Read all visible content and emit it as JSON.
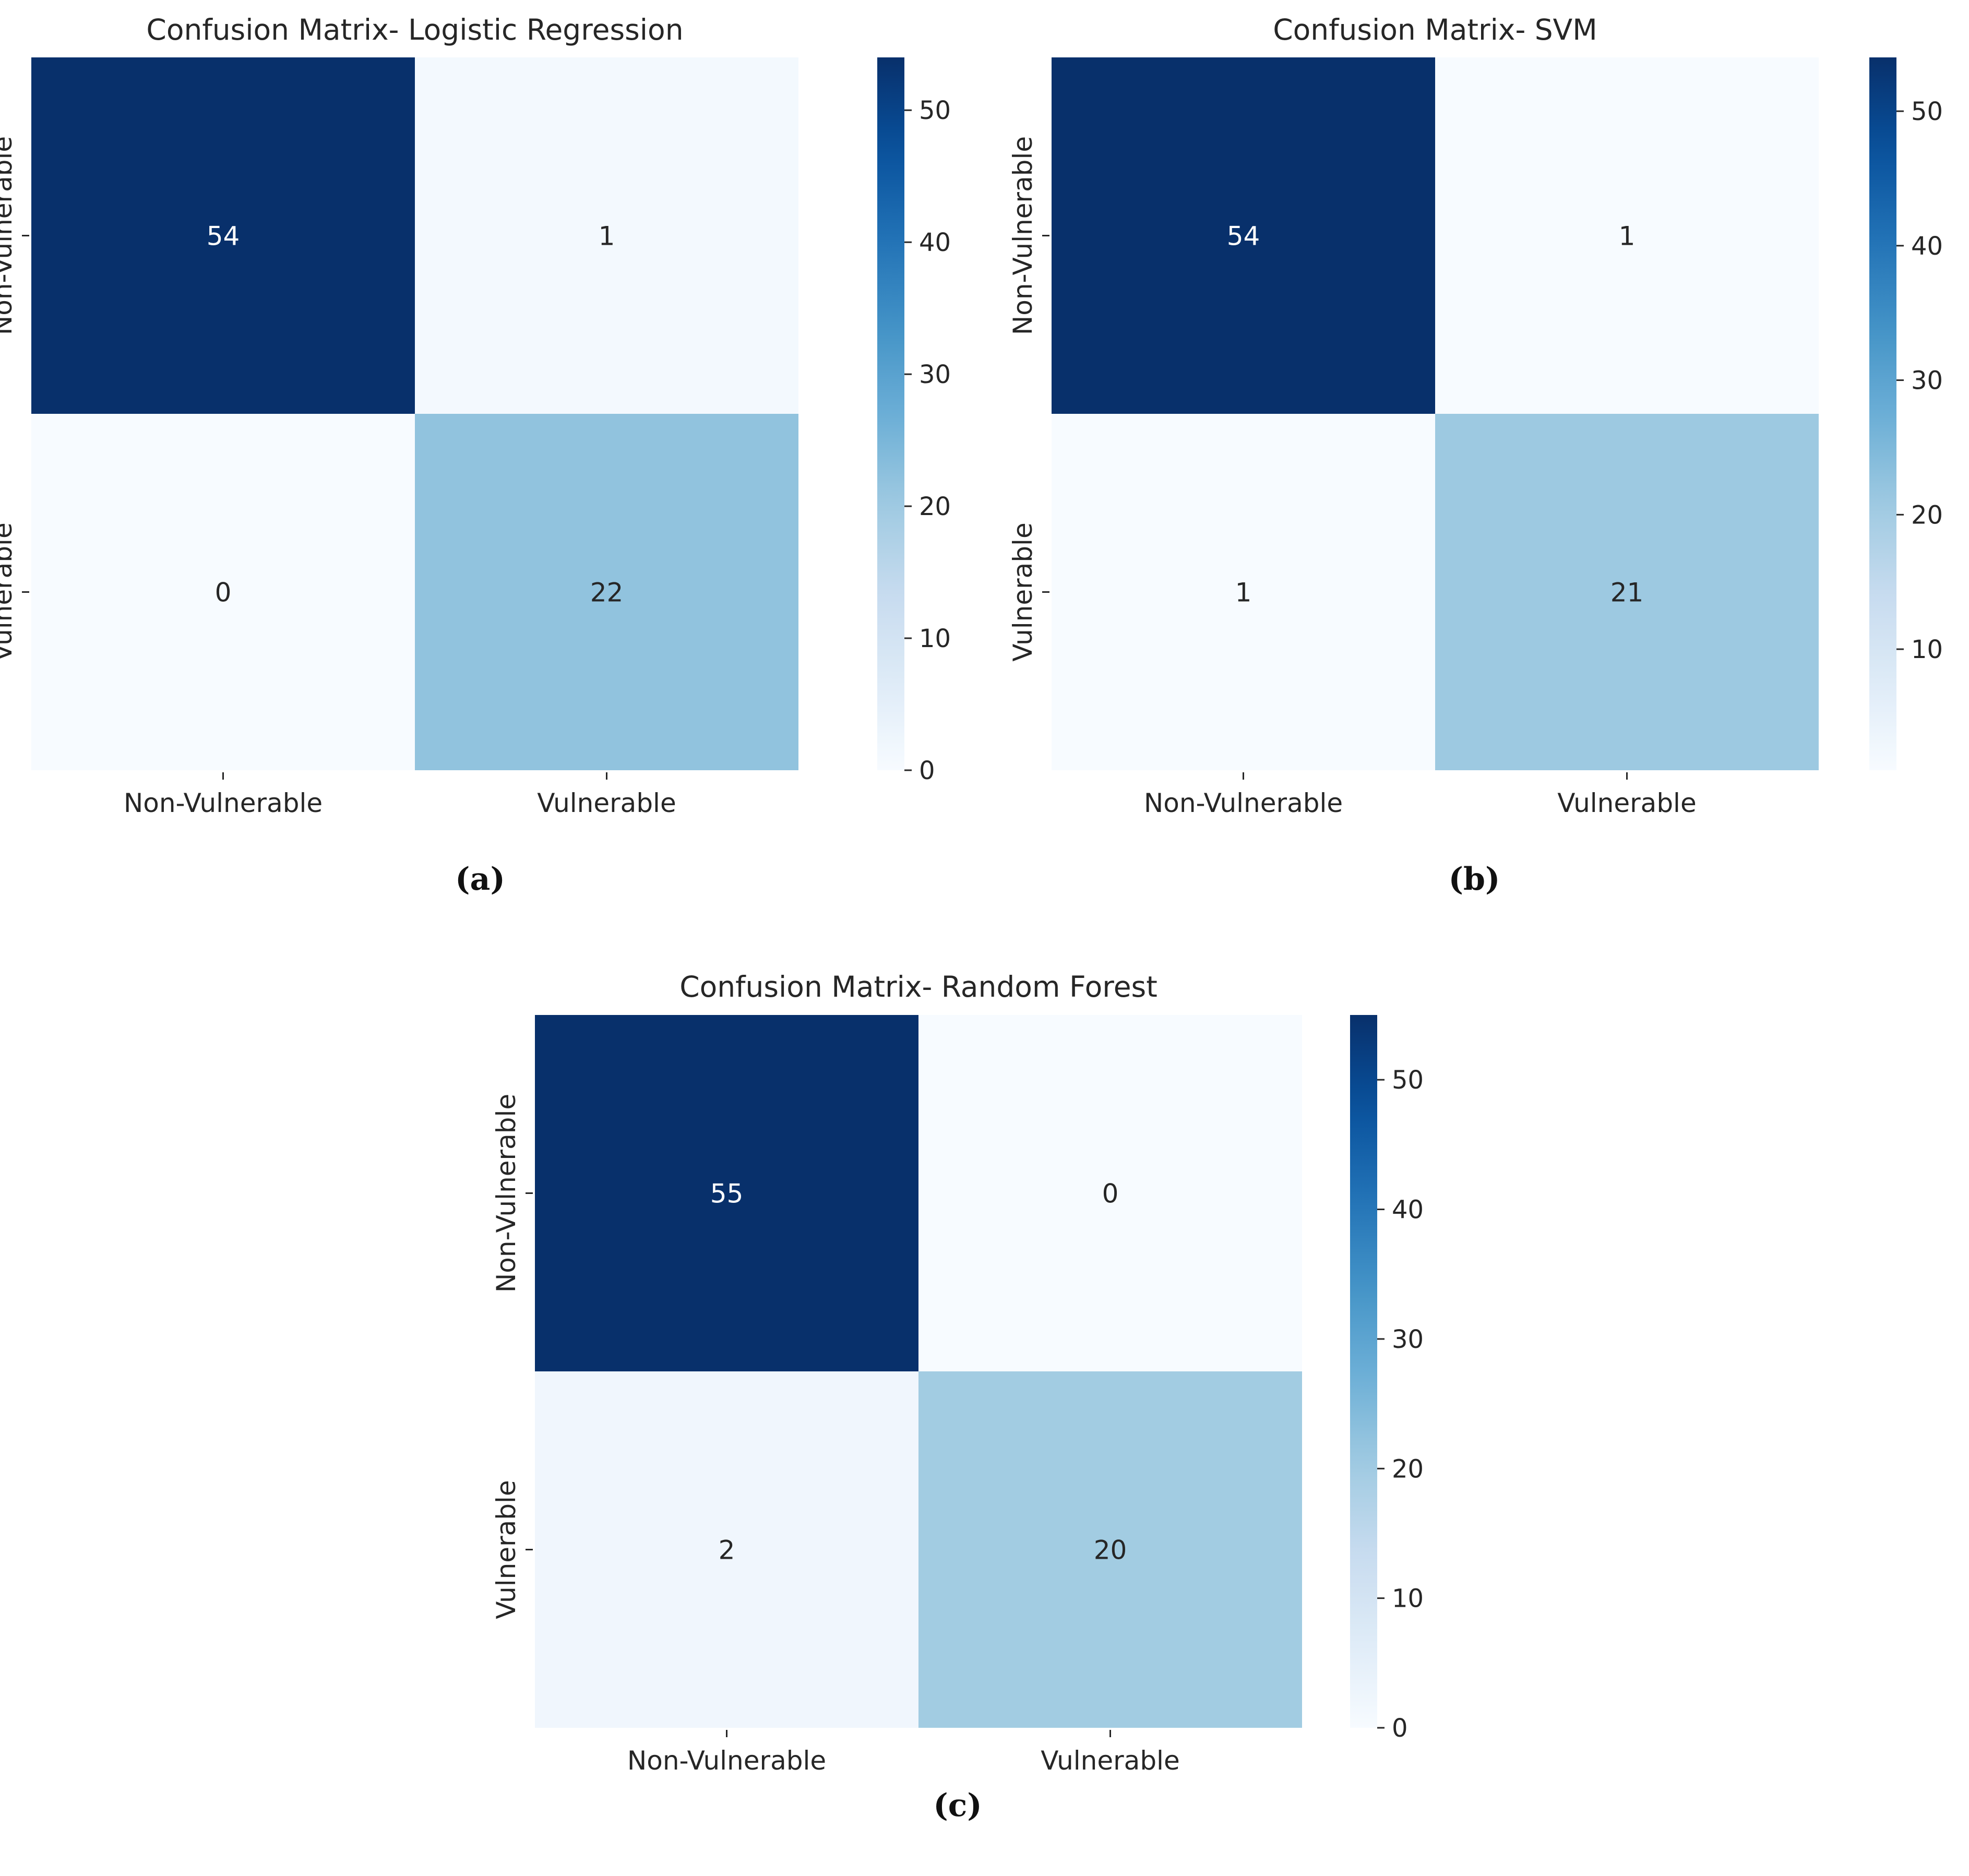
{
  "colors": {
    "low": "#f7fbff",
    "high": "#08306b",
    "text_dark": "#262626",
    "text_light": "#ffffff",
    "axis": "#262626"
  },
  "chart_data": [
    {
      "type": "heatmap",
      "title": "Confusion Matrix- Logistic Regression",
      "caption": "(a)",
      "row_labels": [
        "Non-Vulnerable",
        "Vulnerable"
      ],
      "col_labels": [
        "Non-Vulnerable",
        "Vulnerable"
      ],
      "values": [
        [
          54,
          1
        ],
        [
          0,
          22
        ]
      ],
      "colorbar": {
        "vmin": 0,
        "vmax": 54,
        "ticks": [
          0,
          10,
          20,
          30,
          40,
          50
        ]
      },
      "colormap": "Blues"
    },
    {
      "type": "heatmap",
      "title": "Confusion Matrix- SVM",
      "caption": "(b)",
      "row_labels": [
        "Non-Vulnerable",
        "Vulnerable"
      ],
      "col_labels": [
        "Non-Vulnerable",
        "Vulnerable"
      ],
      "values": [
        [
          54,
          1
        ],
        [
          1,
          21
        ]
      ],
      "colorbar": {
        "vmin": 1,
        "vmax": 54,
        "ticks": [
          10,
          20,
          30,
          40,
          50
        ]
      },
      "colormap": "Blues"
    },
    {
      "type": "heatmap",
      "title": "Confusion Matrix- Random Forest",
      "caption": "(c)",
      "row_labels": [
        "Non-Vulnerable",
        "Vulnerable"
      ],
      "col_labels": [
        "Non-Vulnerable",
        "Vulnerable"
      ],
      "values": [
        [
          55,
          0
        ],
        [
          2,
          20
        ]
      ],
      "colorbar": {
        "vmin": 0,
        "vmax": 55,
        "ticks": [
          0,
          10,
          20,
          30,
          40,
          50
        ]
      },
      "colormap": "Blues"
    }
  ]
}
